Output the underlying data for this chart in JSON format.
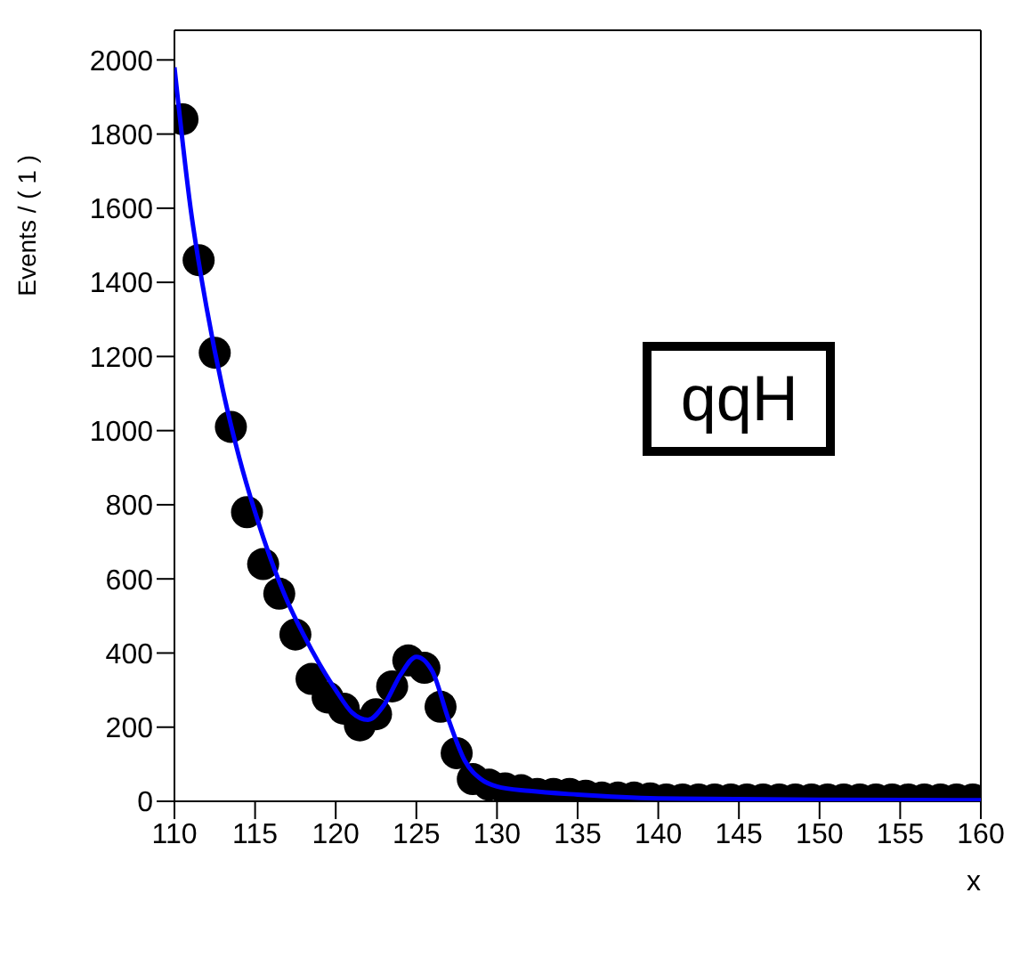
{
  "chart_data": {
    "type": "scatter",
    "xlabel": "x",
    "ylabel": "Events / ( 1 )",
    "annotations": [
      "qqH"
    ],
    "xlim": [
      110,
      160
    ],
    "xticks": [
      110,
      115,
      120,
      125,
      130,
      135,
      140,
      145,
      150,
      155,
      160
    ],
    "ylim": [
      0,
      2080
    ],
    "yticks": [
      0,
      200,
      400,
      600,
      800,
      1000,
      1200,
      1400,
      1600,
      1800,
      2000
    ],
    "grid": false,
    "legend": false,
    "marker": "circle",
    "series": [
      {
        "color": "#000000",
        "x": [
          110.5,
          111.5,
          112.5,
          113.5,
          114.5,
          115.5,
          116.5,
          117.5,
          118.5,
          119.5,
          120.5,
          121.5,
          122.5,
          123.5,
          124.5,
          125.5,
          126.5,
          127.5,
          128.5,
          129.5,
          130.5,
          131.5,
          132.5,
          133.5,
          134.5,
          135.5,
          136.5,
          137.5,
          138.5,
          139.5,
          140.5,
          141.5,
          142.5,
          143.5,
          144.5,
          145.5,
          146.5,
          147.5,
          148.5,
          149.5,
          150.5,
          151.5,
          152.5,
          153.5,
          154.5,
          155.5,
          156.5,
          157.5,
          158.5,
          159.5
        ],
        "values": [
          1840,
          1460,
          1210,
          1010,
          780,
          640,
          560,
          450,
          330,
          280,
          250,
          205,
          235,
          310,
          380,
          360,
          255,
          130,
          60,
          45,
          35,
          30,
          20,
          20,
          20,
          15,
          10,
          10,
          10,
          8,
          5,
          5,
          5,
          5,
          5,
          5,
          5,
          5,
          5,
          5,
          5,
          5,
          5,
          5,
          5,
          5,
          5,
          5,
          5,
          5
        ]
      },
      {
        "type": "line",
        "color": "#0000ff",
        "marker": "none",
        "line_style": "solid",
        "x": [
          110,
          111,
          112,
          113,
          114,
          115,
          116,
          117,
          118,
          119,
          120,
          121,
          122,
          123,
          124,
          125,
          126,
          127,
          128,
          129,
          130,
          132,
          135,
          140,
          150,
          160
        ],
        "values": [
          1980,
          1600,
          1330,
          1110,
          930,
          780,
          650,
          540,
          450,
          370,
          300,
          240,
          220,
          260,
          340,
          390,
          350,
          220,
          110,
          60,
          40,
          28,
          18,
          8,
          4,
          3
        ]
      }
    ]
  }
}
